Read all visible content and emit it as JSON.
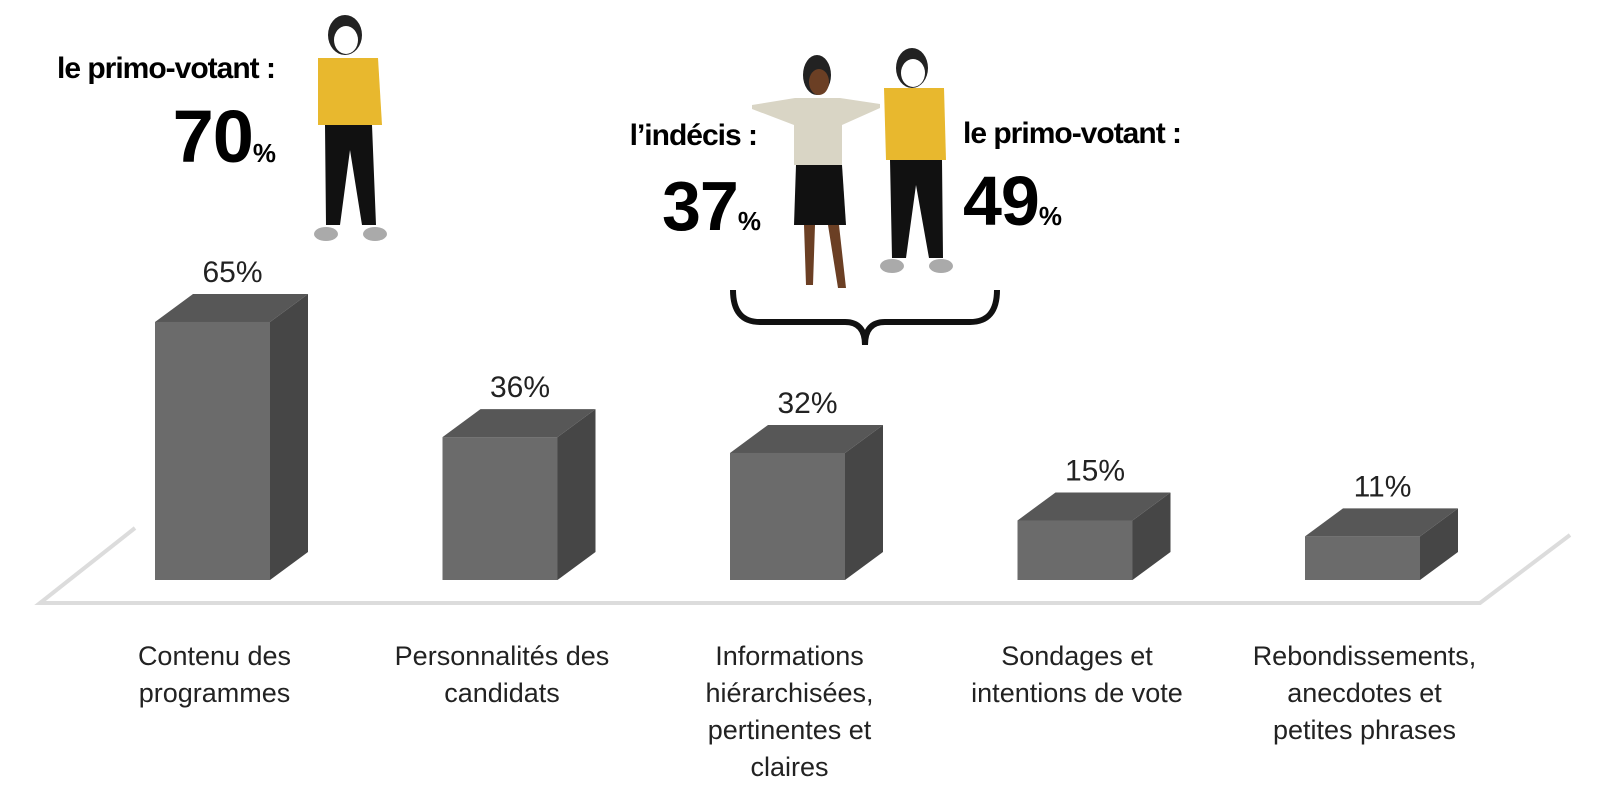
{
  "chart_data": {
    "type": "bar",
    "categories": [
      "Contenu des\nprogrammes",
      "Personnalités des\ncandidats",
      "Informations\nhiérarchisées,\npertinentes et\nclaires",
      "Sondages et\nintentions de vote",
      "Rebondissements,\nanecdotes et\npetites phrases"
    ],
    "values": [
      65,
      36,
      32,
      15,
      11
    ],
    "value_labels": [
      "65%",
      "36%",
      "32%",
      "15%",
      "11%"
    ],
    "colors": {
      "front": "#6b6b6b",
      "side": "#464646",
      "top": "#575757"
    },
    "annotations": [
      {
        "text": "le primo-votant :",
        "value": 70,
        "unit": "%"
      },
      {
        "text": "l’indécis :",
        "value": 37,
        "unit": "%"
      },
      {
        "text": "le primo-votant :",
        "value": 49,
        "unit": "%"
      }
    ]
  }
}
